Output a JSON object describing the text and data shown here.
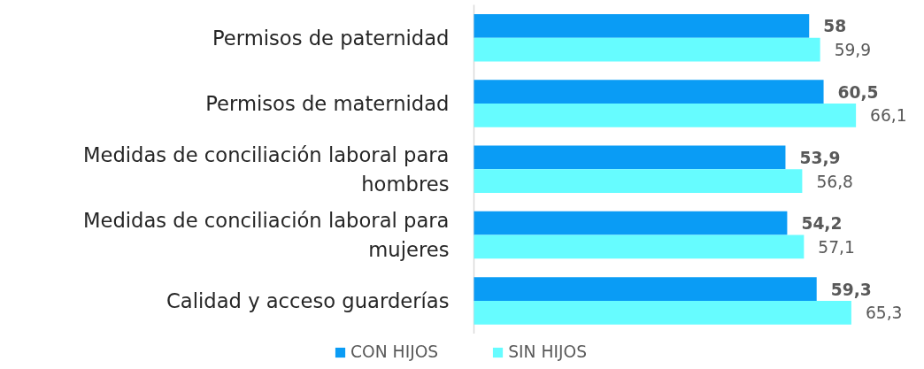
{
  "chart_data": {
    "type": "bar",
    "orientation": "horizontal",
    "categories": [
      "Permisos de paternidad",
      "Permisos de maternidad",
      "Medidas de conciliación laboral para hombres",
      "Medidas de conciliación laboral para mujeres",
      "Calidad y acceso guarderías"
    ],
    "series": [
      {
        "name": "CON HIJOS",
        "color": "#0a9cf5",
        "values": [
          58,
          60.5,
          53.9,
          54.2,
          59.3
        ],
        "value_labels": [
          "58",
          "60,5",
          "53,9",
          "54,2",
          "59,3"
        ]
      },
      {
        "name": "SIN HIJOS",
        "color": "#66fcff",
        "values": [
          59.9,
          66.1,
          56.8,
          57.1,
          65.3
        ],
        "value_labels": [
          "59,9",
          "66,1",
          "56,8",
          "57,1",
          "65,3"
        ]
      }
    ],
    "legend": "bottom",
    "grid": false
  }
}
